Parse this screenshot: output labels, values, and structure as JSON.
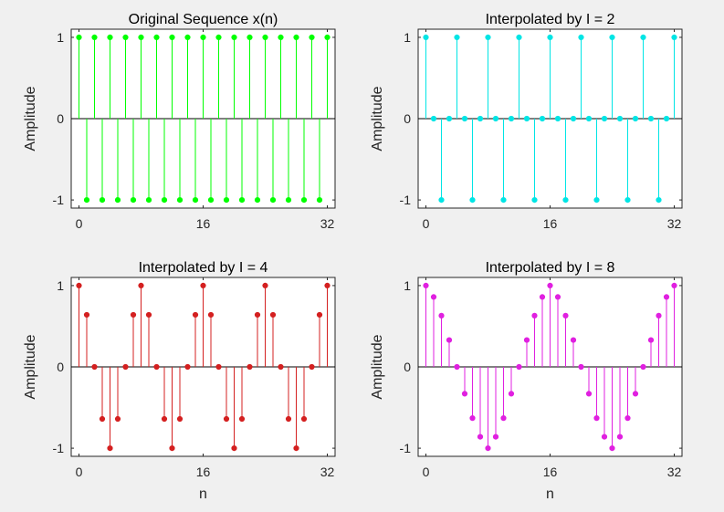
{
  "chart_data": [
    {
      "type": "stem",
      "title": "Original Sequence x(n)",
      "xlabel": "",
      "ylabel": "Amplitude",
      "xlim": [
        -1,
        33
      ],
      "ylim": [
        -1.1,
        1.1
      ],
      "xticks": [
        0,
        16,
        32
      ],
      "yticks": [
        -1,
        0,
        1
      ],
      "color": "#00ff00",
      "x": [
        0,
        1,
        2,
        3,
        4,
        5,
        6,
        7,
        8,
        9,
        10,
        11,
        12,
        13,
        14,
        15,
        16,
        17,
        18,
        19,
        20,
        21,
        22,
        23,
        24,
        25,
        26,
        27,
        28,
        29,
        30,
        31,
        32
      ],
      "y": [
        1,
        -1,
        1,
        -1,
        1,
        -1,
        1,
        -1,
        1,
        -1,
        1,
        -1,
        1,
        -1,
        1,
        -1,
        1,
        -1,
        1,
        -1,
        1,
        -1,
        1,
        -1,
        1,
        -1,
        1,
        -1,
        1,
        -1,
        1,
        -1,
        1
      ]
    },
    {
      "type": "stem",
      "title": "Interpolated by I = 2",
      "xlabel": "",
      "ylabel": "Amplitude",
      "xlim": [
        -1,
        33
      ],
      "ylim": [
        -1.1,
        1.1
      ],
      "xticks": [
        0,
        16,
        32
      ],
      "yticks": [
        -1,
        0,
        1
      ],
      "color": "#00e5e5",
      "x": [
        0,
        1,
        2,
        3,
        4,
        5,
        6,
        7,
        8,
        9,
        10,
        11,
        12,
        13,
        14,
        15,
        16,
        17,
        18,
        19,
        20,
        21,
        22,
        23,
        24,
        25,
        26,
        27,
        28,
        29,
        30,
        31,
        32
      ],
      "y": [
        1,
        0,
        -1,
        0,
        1,
        0,
        -1,
        0,
        1,
        0,
        -1,
        0,
        1,
        0,
        -1,
        0,
        1,
        0,
        -1,
        0,
        1,
        0,
        -1,
        0,
        1,
        0,
        -1,
        0,
        1,
        0,
        -1,
        0,
        1
      ]
    },
    {
      "type": "stem",
      "title": "Interpolated by I = 4",
      "xlabel": "n",
      "ylabel": "Amplitude",
      "xlim": [
        -1,
        33
      ],
      "ylim": [
        -1.1,
        1.1
      ],
      "xticks": [
        0,
        16,
        32
      ],
      "yticks": [
        -1,
        0,
        1
      ],
      "color": "#d42020",
      "x": [
        0,
        1,
        2,
        3,
        4,
        5,
        6,
        7,
        8,
        9,
        10,
        11,
        12,
        13,
        14,
        15,
        16,
        17,
        18,
        19,
        20,
        21,
        22,
        23,
        24,
        25,
        26,
        27,
        28,
        29,
        30,
        31,
        32
      ],
      "y": [
        1,
        0.64,
        0,
        -0.64,
        -1,
        -0.64,
        0,
        0.64,
        1,
        0.64,
        0,
        -0.64,
        -1,
        -0.64,
        0,
        0.64,
        1,
        0.64,
        0,
        -0.64,
        -1,
        -0.64,
        0,
        0.64,
        1,
        0.64,
        0,
        -0.64,
        -1,
        -0.64,
        0,
        0.64,
        1
      ]
    },
    {
      "type": "stem",
      "title": "Interpolated by I = 8",
      "xlabel": "n",
      "ylabel": "Amplitude",
      "xlim": [
        -1,
        33
      ],
      "ylim": [
        -1.1,
        1.1
      ],
      "xticks": [
        0,
        16,
        32
      ],
      "yticks": [
        -1,
        0,
        1
      ],
      "color": "#e020e0",
      "x": [
        0,
        1,
        2,
        3,
        4,
        5,
        6,
        7,
        8,
        9,
        10,
        11,
        12,
        13,
        14,
        15,
        16,
        17,
        18,
        19,
        20,
        21,
        22,
        23,
        24,
        25,
        26,
        27,
        28,
        29,
        30,
        31,
        32
      ],
      "y": [
        1,
        0.86,
        0.63,
        0.33,
        0,
        -0.33,
        -0.63,
        -0.86,
        -1,
        -0.86,
        -0.63,
        -0.33,
        0,
        0.33,
        0.63,
        0.86,
        1,
        0.86,
        0.63,
        0.33,
        0,
        -0.33,
        -0.63,
        -0.86,
        -1,
        -0.86,
        -0.63,
        -0.33,
        0,
        0.33,
        0.63,
        0.86,
        1
      ]
    }
  ]
}
